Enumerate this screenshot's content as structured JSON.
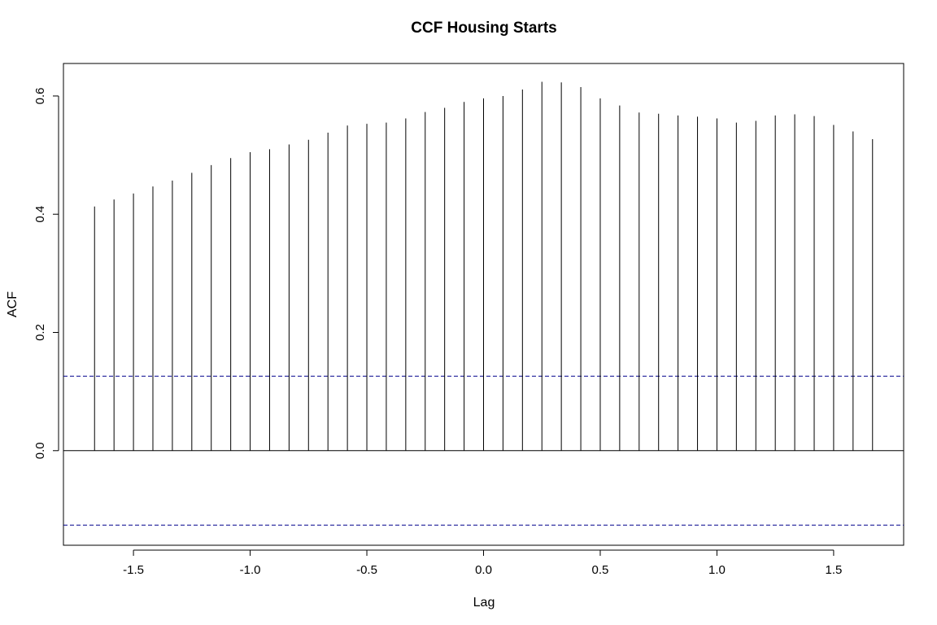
{
  "chart_data": {
    "type": "bar",
    "title": "CCF Housing Starts",
    "xlabel": "Lag",
    "ylabel": "ACF",
    "xlim": [
      -1.8,
      1.8
    ],
    "ylim": [
      -0.16,
      0.655
    ],
    "xticks": [
      -1.5,
      -1.0,
      -0.5,
      0.0,
      0.5,
      1.0,
      1.5
    ],
    "xtick_labels": [
      "-1.5",
      "-1.0",
      "-0.5",
      "0.0",
      "0.5",
      "1.0",
      "1.5"
    ],
    "yticks": [
      0.0,
      0.2,
      0.4,
      0.6
    ],
    "ytick_labels": [
      "0.0",
      "0.2",
      "0.4",
      "0.6"
    ],
    "grid": false,
    "bar_color": "#000000",
    "confidence_color": "#00008b",
    "confidence_limit": 0.126,
    "lags": [
      -1.6667,
      -1.5833,
      -1.5,
      -1.4167,
      -1.3333,
      -1.25,
      -1.1667,
      -1.0833,
      -1.0,
      -0.9167,
      -0.8333,
      -0.75,
      -0.6667,
      -0.5833,
      -0.5,
      -0.4167,
      -0.3333,
      -0.25,
      -0.1667,
      -0.0833,
      0.0,
      0.0833,
      0.1667,
      0.25,
      0.3333,
      0.4167,
      0.5,
      0.5833,
      0.6667,
      0.75,
      0.8333,
      0.9167,
      1.0,
      1.0833,
      1.1667,
      1.25,
      1.3333,
      1.4167,
      1.5,
      1.5833,
      1.6667
    ],
    "values": [
      0.413,
      0.425,
      0.435,
      0.447,
      0.457,
      0.47,
      0.483,
      0.495,
      0.505,
      0.51,
      0.518,
      0.526,
      0.538,
      0.55,
      0.553,
      0.555,
      0.562,
      0.573,
      0.58,
      0.59,
      0.596,
      0.6,
      0.611,
      0.624,
      0.623,
      0.615,
      0.596,
      0.584,
      0.572,
      0.57,
      0.567,
      0.565,
      0.562,
      0.555,
      0.558,
      0.567,
      0.569,
      0.566,
      0.551,
      0.54,
      0.527
    ]
  }
}
